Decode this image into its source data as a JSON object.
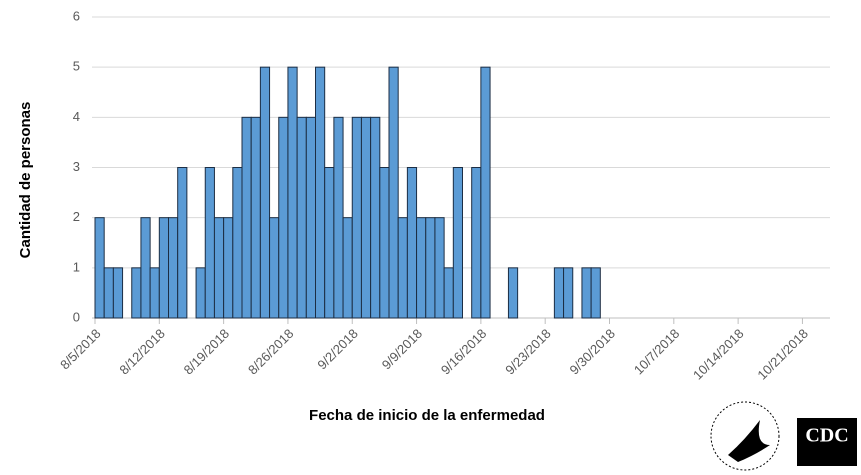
{
  "chart_data": {
    "type": "bar",
    "y_label": "Cantidad de personas",
    "x_label": "Fecha de inicio de la enfermedad",
    "x": [
      "8/5/2018",
      "8/6/2018",
      "8/7/2018",
      "8/8/2018",
      "8/9/2018",
      "8/10/2018",
      "8/11/2018",
      "8/12/2018",
      "8/13/2018",
      "8/14/2018",
      "8/15/2018",
      "8/16/2018",
      "8/17/2018",
      "8/18/2018",
      "8/19/2018",
      "8/20/2018",
      "8/21/2018",
      "8/22/2018",
      "8/23/2018",
      "8/24/2018",
      "8/25/2018",
      "8/26/2018",
      "8/27/2018",
      "8/28/2018",
      "8/29/2018",
      "8/30/2018",
      "8/31/2018",
      "9/1/2018",
      "9/2/2018",
      "9/3/2018",
      "9/4/2018",
      "9/5/2018",
      "9/6/2018",
      "9/7/2018",
      "9/8/2018",
      "9/9/2018",
      "9/10/2018",
      "9/11/2018",
      "9/12/2018",
      "9/13/2018",
      "9/14/2018",
      "9/15/2018",
      "9/16/2018",
      "9/17/2018",
      "9/18/2018",
      "9/19/2018",
      "9/20/2018",
      "9/21/2018",
      "9/22/2018",
      "9/23/2018",
      "9/24/2018",
      "9/25/2018",
      "9/26/2018",
      "9/27/2018",
      "9/28/2018"
    ],
    "values": [
      2,
      1,
      1,
      0,
      1,
      2,
      1,
      2,
      2,
      3,
      0,
      1,
      3,
      2,
      2,
      3,
      4,
      4,
      5,
      2,
      4,
      5,
      4,
      4,
      5,
      3,
      4,
      2,
      4,
      4,
      4,
      3,
      5,
      2,
      3,
      2,
      2,
      2,
      1,
      3,
      0,
      3,
      5,
      0,
      0,
      1,
      0,
      0,
      0,
      0,
      1,
      1,
      0,
      1,
      1
    ],
    "color": "#5b9bd5",
    "xlim": [
      "8/5/2018",
      "10/24/2018"
    ],
    "xticks": [
      "8/5/2018",
      "8/12/2018",
      "8/19/2018",
      "8/26/2018",
      "9/2/2018",
      "9/9/2018",
      "9/16/2018",
      "9/23/2018",
      "9/30/2018",
      "10/7/2018",
      "10/14/2018",
      "10/21/2018"
    ],
    "ylim": [
      0,
      6
    ],
    "yticks": [
      0,
      1,
      2,
      3,
      4,
      5,
      6
    ],
    "grid": true
  },
  "logos": {
    "cdc": "CDC"
  }
}
